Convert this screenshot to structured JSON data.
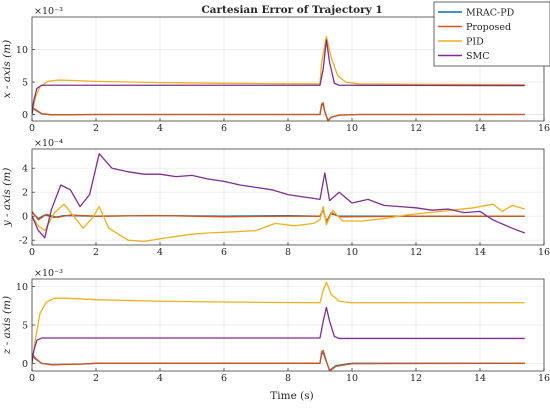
{
  "title": "Cartesian Error of Trajectory 1",
  "xlabel": "Time (s)",
  "colors": {
    "MRAC-PD": "#0072BD",
    "Proposed": "#D95319",
    "PID": "#EDB120",
    "SMC": "#7E2F8E"
  },
  "legend": {
    "placement": "top-right",
    "entries": [
      "MRAC-PD",
      "Proposed",
      "PID",
      "SMC"
    ]
  },
  "chart_data": [
    {
      "type": "line",
      "ylabel": "x - axis (m)",
      "exponent": "×10⁻³",
      "xlim": [
        0,
        16
      ],
      "ylim": [
        -1,
        15
      ],
      "xticks": [
        "0",
        "2",
        "4",
        "6",
        "8",
        "10",
        "12",
        "14",
        "16"
      ],
      "yticks": [
        "0",
        "5",
        "10"
      ],
      "grid": true,
      "series": [
        {
          "name": "MRAC-PD",
          "color": "#0072BD",
          "points": [
            [
              0,
              1.0
            ],
            [
              0.1,
              0.7
            ],
            [
              0.3,
              0.1
            ],
            [
              0.6,
              -0.05
            ],
            [
              2,
              0.0
            ],
            [
              9,
              0.0
            ],
            [
              9.05,
              1.4
            ],
            [
              9.1,
              1.6
            ],
            [
              9.15,
              0.4
            ],
            [
              9.25,
              -0.9
            ],
            [
              9.35,
              -0.4
            ],
            [
              9.6,
              -0.1
            ],
            [
              10.2,
              0.0
            ],
            [
              15.4,
              0.0
            ]
          ]
        },
        {
          "name": "Proposed",
          "color": "#D95319",
          "points": [
            [
              0,
              1.1
            ],
            [
              0.1,
              0.8
            ],
            [
              0.3,
              0.15
            ],
            [
              0.6,
              -0.05
            ],
            [
              2,
              0.0
            ],
            [
              9,
              0.0
            ],
            [
              9.05,
              1.6
            ],
            [
              9.1,
              1.8
            ],
            [
              9.15,
              0.5
            ],
            [
              9.25,
              -1.0
            ],
            [
              9.35,
              -0.45
            ],
            [
              9.6,
              -0.1
            ],
            [
              10.2,
              0.0
            ],
            [
              15.4,
              0.0
            ]
          ]
        },
        {
          "name": "PID",
          "color": "#EDB120",
          "points": [
            [
              0,
              0
            ],
            [
              0.1,
              2.5
            ],
            [
              0.25,
              4.3
            ],
            [
              0.5,
              5.1
            ],
            [
              0.8,
              5.3
            ],
            [
              1.2,
              5.25
            ],
            [
              2,
              5.1
            ],
            [
              4,
              4.9
            ],
            [
              6,
              4.8
            ],
            [
              9,
              4.7
            ],
            [
              9.05,
              8.0
            ],
            [
              9.2,
              12.0
            ],
            [
              9.35,
              8.8
            ],
            [
              9.55,
              6.0
            ],
            [
              9.8,
              5.0
            ],
            [
              10.2,
              4.7
            ],
            [
              12,
              4.65
            ],
            [
              15.4,
              4.6
            ]
          ]
        },
        {
          "name": "SMC",
          "color": "#7E2F8E",
          "points": [
            [
              0,
              0
            ],
            [
              0.05,
              2.0
            ],
            [
              0.15,
              4.0
            ],
            [
              0.3,
              4.5
            ],
            [
              1,
              4.5
            ],
            [
              9,
              4.5
            ],
            [
              9.1,
              7.0
            ],
            [
              9.2,
              11.5
            ],
            [
              9.3,
              8.0
            ],
            [
              9.45,
              4.8
            ],
            [
              9.6,
              4.5
            ],
            [
              15.4,
              4.45
            ]
          ]
        }
      ]
    },
    {
      "type": "line",
      "ylabel": "y - axis (m)",
      "exponent": "×10⁻⁴",
      "xlim": [
        0,
        16
      ],
      "ylim": [
        -2.4,
        5.6
      ],
      "xticks": [
        "0",
        "2",
        "4",
        "6",
        "8",
        "10",
        "12",
        "14",
        "16"
      ],
      "yticks": [
        "-2",
        "0",
        "2",
        "4"
      ],
      "grid": true,
      "series": [
        {
          "name": "MRAC-PD",
          "color": "#0072BD",
          "points": [
            [
              0,
              0.3
            ],
            [
              0.2,
              -0.2
            ],
            [
              0.4,
              0.1
            ],
            [
              0.7,
              -0.1
            ],
            [
              1,
              0.05
            ],
            [
              2,
              0.0
            ],
            [
              4,
              0.05
            ],
            [
              6,
              0.0
            ],
            [
              8,
              0.05
            ],
            [
              9,
              0.0
            ],
            [
              9.1,
              0.5
            ],
            [
              9.2,
              -0.4
            ],
            [
              9.35,
              0.2
            ],
            [
              9.6,
              0.0
            ],
            [
              12,
              0.0
            ],
            [
              15.4,
              0.0
            ]
          ]
        },
        {
          "name": "Proposed",
          "color": "#D95319",
          "points": [
            [
              0,
              0.4
            ],
            [
              0.2,
              -0.3
            ],
            [
              0.45,
              0.15
            ],
            [
              0.8,
              -0.1
            ],
            [
              1.2,
              0.1
            ],
            [
              2,
              0.0
            ],
            [
              4,
              0.05
            ],
            [
              6,
              -0.05
            ],
            [
              8,
              0.0
            ],
            [
              9,
              0.0
            ],
            [
              9.1,
              0.6
            ],
            [
              9.2,
              -0.5
            ],
            [
              9.35,
              0.3
            ],
            [
              9.6,
              -0.05
            ],
            [
              12,
              0.0
            ],
            [
              15.4,
              0.0
            ]
          ]
        },
        {
          "name": "PID",
          "color": "#EDB120",
          "points": [
            [
              0,
              0
            ],
            [
              0.2,
              -0.8
            ],
            [
              0.4,
              -1.2
            ],
            [
              0.7,
              0.3
            ],
            [
              1.0,
              1.0
            ],
            [
              1.3,
              0.0
            ],
            [
              1.6,
              -1.0
            ],
            [
              1.9,
              -0.1
            ],
            [
              2.1,
              0.8
            ],
            [
              2.4,
              -1.0
            ],
            [
              3.0,
              -2.0
            ],
            [
              3.5,
              -2.1
            ],
            [
              4.2,
              -1.8
            ],
            [
              5.0,
              -1.5
            ],
            [
              5.5,
              -1.4
            ],
            [
              6.3,
              -1.3
            ],
            [
              7.0,
              -1.2
            ],
            [
              7.6,
              -0.6
            ],
            [
              8.2,
              -0.8
            ],
            [
              8.8,
              -0.6
            ],
            [
              9.0,
              -0.3
            ],
            [
              9.1,
              0.8
            ],
            [
              9.2,
              -0.7
            ],
            [
              9.4,
              0.5
            ],
            [
              9.7,
              -0.4
            ],
            [
              10.3,
              -0.4
            ],
            [
              11,
              -0.2
            ],
            [
              11.7,
              0.1
            ],
            [
              12.4,
              0.3
            ],
            [
              13.1,
              0.5
            ],
            [
              13.8,
              0.7
            ],
            [
              14.4,
              1.0
            ],
            [
              14.7,
              0.4
            ],
            [
              15,
              0.9
            ],
            [
              15.4,
              0.6
            ]
          ]
        },
        {
          "name": "SMC",
          "color": "#7E2F8E",
          "points": [
            [
              0,
              0
            ],
            [
              0.2,
              -1.2
            ],
            [
              0.4,
              -1.8
            ],
            [
              0.6,
              0.5
            ],
            [
              0.9,
              2.6
            ],
            [
              1.2,
              2.2
            ],
            [
              1.5,
              0.8
            ],
            [
              1.8,
              1.8
            ],
            [
              2.1,
              5.2
            ],
            [
              2.5,
              4.0
            ],
            [
              3,
              3.7
            ],
            [
              3.5,
              3.5
            ],
            [
              4,
              3.5
            ],
            [
              4.5,
              3.3
            ],
            [
              5,
              3.4
            ],
            [
              5.5,
              3.1
            ],
            [
              6,
              2.9
            ],
            [
              6.5,
              2.6
            ],
            [
              7,
              2.4
            ],
            [
              7.5,
              2.2
            ],
            [
              8,
              1.8
            ],
            [
              8.5,
              1.6
            ],
            [
              9,
              1.4
            ],
            [
              9.15,
              3.6
            ],
            [
              9.3,
              1.3
            ],
            [
              9.6,
              2.0
            ],
            [
              10,
              1.1
            ],
            [
              10.5,
              1.4
            ],
            [
              11,
              0.9
            ],
            [
              11.5,
              0.8
            ],
            [
              12,
              0.7
            ],
            [
              12.5,
              0.5
            ],
            [
              13,
              0.6
            ],
            [
              13.5,
              0.3
            ],
            [
              14,
              0.4
            ],
            [
              14.4,
              -0.3
            ],
            [
              15,
              -1.0
            ],
            [
              15.4,
              -1.4
            ]
          ]
        }
      ]
    },
    {
      "type": "line",
      "ylabel": "z - axis (m)",
      "exponent": "×10⁻³",
      "xlim": [
        0,
        16
      ],
      "ylim": [
        -1,
        11
      ],
      "xticks": [
        "0",
        "2",
        "4",
        "6",
        "8",
        "10",
        "12",
        "14",
        "16"
      ],
      "yticks": [
        "0",
        "5",
        "10"
      ],
      "grid": true,
      "series": [
        {
          "name": "MRAC-PD",
          "color": "#0072BD",
          "points": [
            [
              0,
              1.2
            ],
            [
              0.1,
              0.6
            ],
            [
              0.3,
              0.0
            ],
            [
              0.6,
              -0.15
            ],
            [
              1.5,
              -0.1
            ],
            [
              2,
              0.0
            ],
            [
              9,
              0.0
            ],
            [
              9.05,
              1.2
            ],
            [
              9.1,
              1.4
            ],
            [
              9.2,
              0.2
            ],
            [
              9.3,
              -0.9
            ],
            [
              9.5,
              -0.3
            ],
            [
              10,
              0.0
            ],
            [
              15.4,
              0.0
            ]
          ]
        },
        {
          "name": "Proposed",
          "color": "#D95319",
          "points": [
            [
              0,
              1.3
            ],
            [
              0.1,
              0.7
            ],
            [
              0.3,
              0.0
            ],
            [
              0.6,
              -0.2
            ],
            [
              1.5,
              -0.1
            ],
            [
              2,
              0.0
            ],
            [
              9,
              0.0
            ],
            [
              9.05,
              1.5
            ],
            [
              9.1,
              1.7
            ],
            [
              9.2,
              0.3
            ],
            [
              9.3,
              -1.0
            ],
            [
              9.5,
              -0.4
            ],
            [
              10,
              -0.05
            ],
            [
              15.4,
              0.0
            ]
          ]
        },
        {
          "name": "PID",
          "color": "#EDB120",
          "points": [
            [
              0,
              0
            ],
            [
              0.1,
              3.0
            ],
            [
              0.25,
              6.5
            ],
            [
              0.45,
              8.0
            ],
            [
              0.7,
              8.5
            ],
            [
              1,
              8.5
            ],
            [
              2,
              8.3
            ],
            [
              4,
              8.1
            ],
            [
              6,
              8.0
            ],
            [
              9,
              7.9
            ],
            [
              9.1,
              9.5
            ],
            [
              9.2,
              10.6
            ],
            [
              9.35,
              9.0
            ],
            [
              9.6,
              8.1
            ],
            [
              10,
              7.9
            ],
            [
              15.4,
              7.9
            ]
          ]
        },
        {
          "name": "SMC",
          "color": "#7E2F8E",
          "points": [
            [
              0,
              0
            ],
            [
              0.05,
              1.5
            ],
            [
              0.15,
              3.0
            ],
            [
              0.3,
              3.3
            ],
            [
              1,
              3.3
            ],
            [
              9,
              3.3
            ],
            [
              9.1,
              5.5
            ],
            [
              9.2,
              7.3
            ],
            [
              9.3,
              5.5
            ],
            [
              9.45,
              3.5
            ],
            [
              9.6,
              3.25
            ],
            [
              15.4,
              3.25
            ]
          ]
        }
      ]
    }
  ]
}
